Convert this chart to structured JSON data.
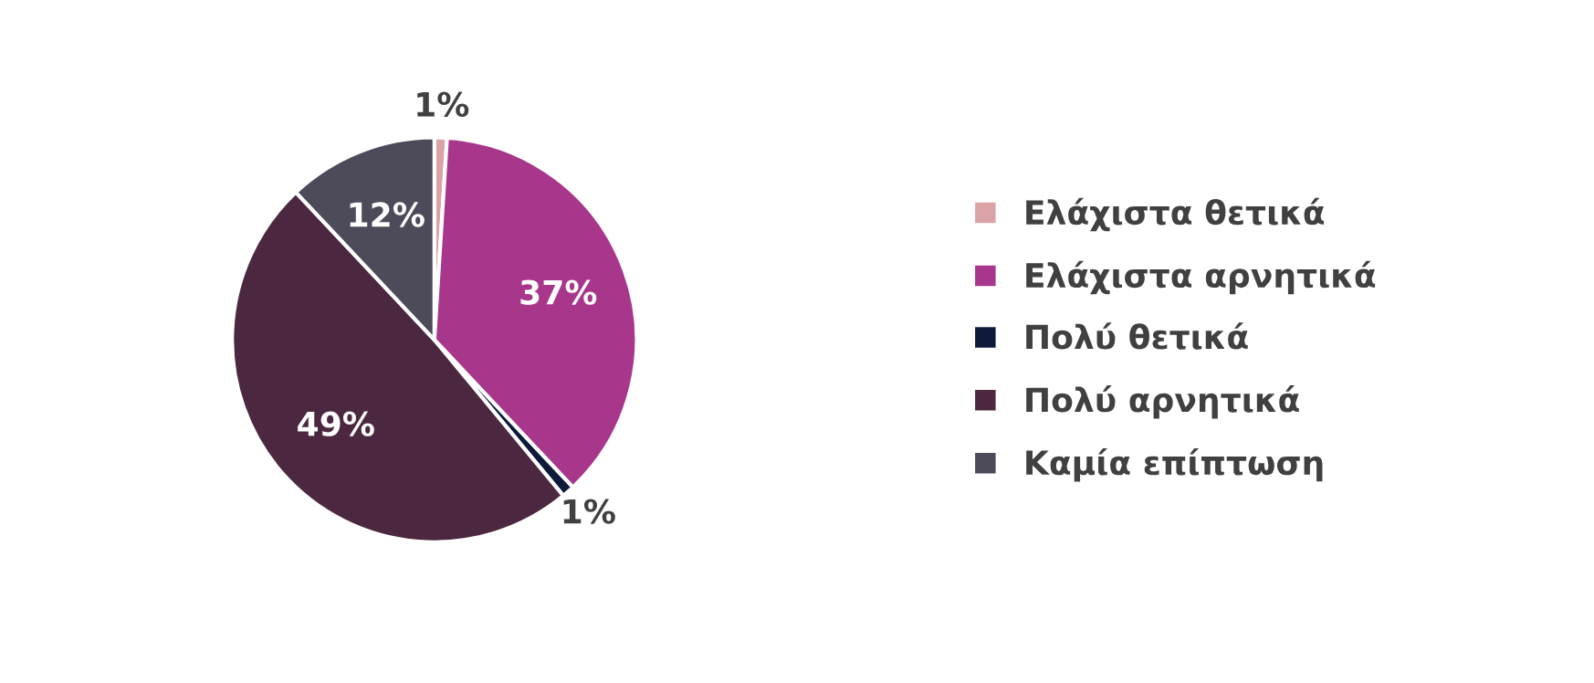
{
  "chart_data": {
    "type": "pie",
    "categories": [
      "Ελάχιστα θετικά",
      "Ελάχιστα αρνητικά",
      "Πολύ θετικά",
      "Πολύ αρνητικά",
      "Καμία επίπτωση"
    ],
    "values": [
      1,
      37,
      1,
      49,
      12
    ],
    "value_labels": [
      "1%",
      "37%",
      "1%",
      "49%",
      "12%"
    ],
    "colors": [
      "#d9a3a8",
      "#a8378c",
      "#0f1a3a",
      "#4b2840",
      "#4d4a59"
    ],
    "legend": "right"
  }
}
